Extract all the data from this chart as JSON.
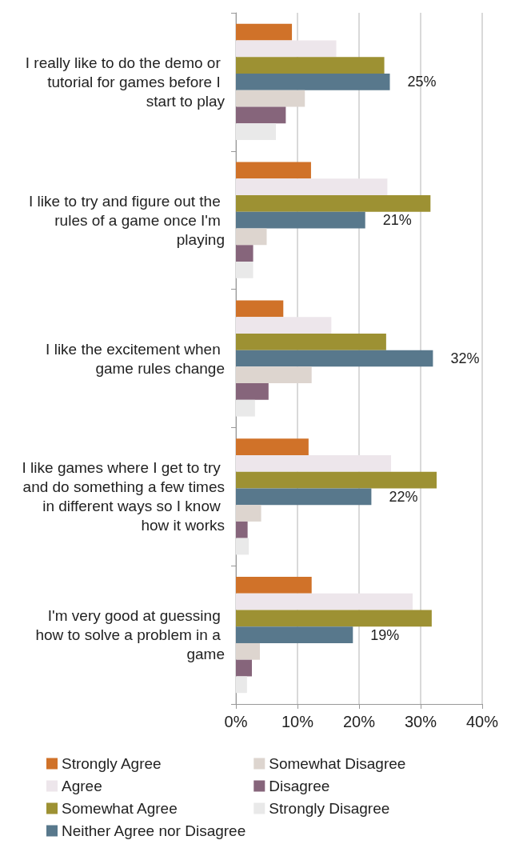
{
  "chart_data": {
    "type": "bar",
    "orientation": "horizontal",
    "categories": [
      "I really like to do the demo or tutorial for games before I start to play",
      "I like to try and figure out the rules of a game once I'm playing",
      "I like the excitement when game rules change",
      "I like games where I get to try and do something a few times in different ways so I know how it works",
      "I'm very good at guessing how to solve a problem in a game"
    ],
    "series": [
      {
        "name": "Strongly Agree",
        "color": "#d07229",
        "values": [
          9.1,
          12.2,
          7.7,
          11.8,
          12.3
        ]
      },
      {
        "name": "Agree",
        "color": "#ede6eb",
        "values": [
          16.3,
          24.6,
          15.5,
          25.2,
          28.7
        ]
      },
      {
        "name": "Somewhat Agree",
        "color": "#9d9133",
        "values": [
          24.1,
          31.6,
          24.4,
          32.6,
          31.8
        ]
      },
      {
        "name": "Neither Agree nor Disagree",
        "color": "#58788c",
        "values": [
          25,
          21,
          32,
          22,
          19
        ],
        "value_labels": [
          "25%",
          "21%",
          "32%",
          "22%",
          "19%"
        ]
      },
      {
        "name": "Somewhat Disagree",
        "color": "#ddd5cf",
        "values": [
          11.2,
          5.0,
          12.3,
          4.1,
          3.9
        ]
      },
      {
        "name": "Disagree",
        "color": "#86657b",
        "values": [
          8.1,
          2.8,
          5.3,
          1.9,
          2.6
        ]
      },
      {
        "name": "Strongly Disagree",
        "color": "#e9e9e9",
        "values": [
          6.5,
          2.8,
          3.1,
          2.1,
          1.8
        ]
      }
    ],
    "xlim": [
      0,
      40
    ],
    "xticks": [
      {
        "value": 0,
        "label": "0%"
      },
      {
        "value": 10,
        "label": "10%"
      },
      {
        "value": 20,
        "label": "20%"
      },
      {
        "value": 30,
        "label": "30%"
      },
      {
        "value": 40,
        "label": "40%"
      }
    ],
    "grid": "x",
    "legend": "bottom"
  }
}
